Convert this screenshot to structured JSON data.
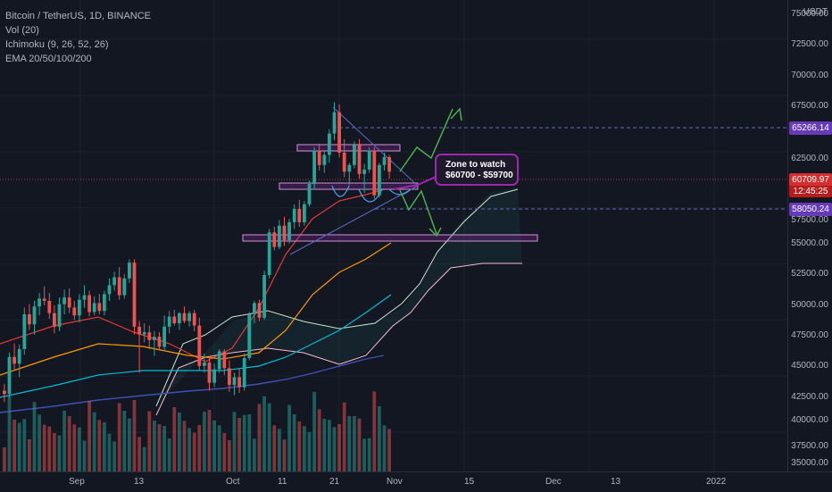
{
  "legend": {
    "symbol": "Bitcoin / TetherUS, 1D, BINANCE",
    "volume": "Vol (20)",
    "ichimoku": "Ichimoku (9, 26, 52, 26)",
    "ema": "EMA 20/50/100/200"
  },
  "price_axis": {
    "currency": "USDT",
    "ticks": [
      "75000.00",
      "72500.00",
      "70000.00",
      "67500.00",
      "62500.00",
      "57500.00",
      "55000.00",
      "52500.00",
      "50000.00",
      "47500.00",
      "45000.00",
      "42500.00",
      "40000.00",
      "37500.00",
      "35000.00"
    ]
  },
  "price_tags": {
    "upper": "65266.14",
    "current": "60709.97",
    "countdown": "12:45:25",
    "lower": "58050.24"
  },
  "time_axis": {
    "labels": [
      "Sep",
      "13",
      "Oct",
      "11",
      "21",
      "Nov",
      "15",
      "Dec",
      "13",
      "2022"
    ]
  },
  "annotation": {
    "line1": "Zone to watch",
    "line2": "$60700 - $59700"
  },
  "colors": {
    "background": "#131722",
    "up": "#26a69a",
    "down": "#ef5350",
    "upper_tag": "#673ab7",
    "current_tag": "#d32f2f",
    "annotation": "#9c27b0",
    "arrow": "#4caf50"
  },
  "chart_data": {
    "type": "candlestick",
    "price_range": [
      34000,
      76000
    ],
    "candles": [
      {
        "o": 41200,
        "h": 41800,
        "l": 40200,
        "c": 40900
      },
      {
        "o": 40900,
        "h": 44600,
        "l": 40600,
        "c": 44200
      },
      {
        "o": 44200,
        "h": 45400,
        "l": 43100,
        "c": 43600
      },
      {
        "o": 43600,
        "h": 45300,
        "l": 42400,
        "c": 44900
      },
      {
        "o": 44900,
        "h": 48600,
        "l": 44400,
        "c": 48000
      },
      {
        "o": 48000,
        "h": 48900,
        "l": 46600,
        "c": 47100
      },
      {
        "o": 47100,
        "h": 49200,
        "l": 46200,
        "c": 48700
      },
      {
        "o": 48700,
        "h": 49900,
        "l": 47900,
        "c": 49400
      },
      {
        "o": 49400,
        "h": 50500,
        "l": 48800,
        "c": 49200
      },
      {
        "o": 49200,
        "h": 49900,
        "l": 47600,
        "c": 48100
      },
      {
        "o": 48100,
        "h": 48800,
        "l": 46300,
        "c": 46900
      },
      {
        "o": 46900,
        "h": 49500,
        "l": 46500,
        "c": 48900
      },
      {
        "o": 48900,
        "h": 50200,
        "l": 48000,
        "c": 49500
      },
      {
        "o": 49500,
        "h": 50300,
        "l": 48100,
        "c": 48600
      },
      {
        "o": 48600,
        "h": 49200,
        "l": 47500,
        "c": 47900
      },
      {
        "o": 47900,
        "h": 49800,
        "l": 47300,
        "c": 49300
      },
      {
        "o": 49300,
        "h": 50600,
        "l": 48600,
        "c": 49700
      },
      {
        "o": 49700,
        "h": 50100,
        "l": 47800,
        "c": 48200
      },
      {
        "o": 48200,
        "h": 49600,
        "l": 47900,
        "c": 49000
      },
      {
        "o": 49000,
        "h": 49800,
        "l": 48000,
        "c": 48300
      },
      {
        "o": 48300,
        "h": 50100,
        "l": 47900,
        "c": 49800
      },
      {
        "o": 49800,
        "h": 51200,
        "l": 49200,
        "c": 50600
      },
      {
        "o": 50600,
        "h": 51800,
        "l": 50100,
        "c": 51300
      },
      {
        "o": 51300,
        "h": 52200,
        "l": 49300,
        "c": 49700
      },
      {
        "o": 49700,
        "h": 51600,
        "l": 49400,
        "c": 51200
      },
      {
        "o": 51200,
        "h": 52900,
        "l": 50800,
        "c": 52600
      },
      {
        "o": 52600,
        "h": 52900,
        "l": 46200,
        "c": 46900
      },
      {
        "o": 46900,
        "h": 47400,
        "l": 42800,
        "c": 46200
      },
      {
        "o": 46200,
        "h": 47200,
        "l": 45500,
        "c": 46400
      },
      {
        "o": 46400,
        "h": 47000,
        "l": 44900,
        "c": 45700
      },
      {
        "o": 45700,
        "h": 46500,
        "l": 44300,
        "c": 46000
      },
      {
        "o": 46000,
        "h": 46400,
        "l": 44800,
        "c": 45100
      },
      {
        "o": 45100,
        "h": 47900,
        "l": 44700,
        "c": 46900
      },
      {
        "o": 46900,
        "h": 48300,
        "l": 46300,
        "c": 47800
      },
      {
        "o": 47800,
        "h": 48400,
        "l": 47000,
        "c": 47200
      },
      {
        "o": 47200,
        "h": 48200,
        "l": 46600,
        "c": 48100
      },
      {
        "o": 48100,
        "h": 48700,
        "l": 47200,
        "c": 47400
      },
      {
        "o": 47400,
        "h": 48300,
        "l": 46900,
        "c": 48100
      },
      {
        "o": 48100,
        "h": 48400,
        "l": 46500,
        "c": 47000
      },
      {
        "o": 47000,
        "h": 47700,
        "l": 43000,
        "c": 43400
      },
      {
        "o": 43400,
        "h": 44500,
        "l": 42800,
        "c": 43700
      },
      {
        "o": 43700,
        "h": 44300,
        "l": 41200,
        "c": 41900
      },
      {
        "o": 41900,
        "h": 43600,
        "l": 41500,
        "c": 43100
      },
      {
        "o": 43100,
        "h": 44900,
        "l": 42800,
        "c": 44700
      },
      {
        "o": 44700,
        "h": 44900,
        "l": 42600,
        "c": 43200
      },
      {
        "o": 43200,
        "h": 43900,
        "l": 41100,
        "c": 41700
      },
      {
        "o": 41700,
        "h": 42800,
        "l": 40800,
        "c": 42400
      },
      {
        "o": 42400,
        "h": 43200,
        "l": 41000,
        "c": 41500
      },
      {
        "o": 41500,
        "h": 44500,
        "l": 41200,
        "c": 44100
      },
      {
        "o": 44100,
        "h": 48200,
        "l": 43900,
        "c": 48000
      },
      {
        "o": 48000,
        "h": 49200,
        "l": 47200,
        "c": 49000
      },
      {
        "o": 49000,
        "h": 49300,
        "l": 47400,
        "c": 47700
      },
      {
        "o": 47700,
        "h": 51900,
        "l": 47500,
        "c": 51500
      },
      {
        "o": 51500,
        "h": 55600,
        "l": 51200,
        "c": 55300
      },
      {
        "o": 55300,
        "h": 55800,
        "l": 53700,
        "c": 54000
      },
      {
        "o": 54000,
        "h": 56400,
        "l": 53800,
        "c": 55900
      },
      {
        "o": 55900,
        "h": 56700,
        "l": 54100,
        "c": 54600
      },
      {
        "o": 54600,
        "h": 56500,
        "l": 54300,
        "c": 56200
      },
      {
        "o": 56200,
        "h": 57800,
        "l": 55600,
        "c": 57400
      },
      {
        "o": 57400,
        "h": 58200,
        "l": 55800,
        "c": 56200
      },
      {
        "o": 56200,
        "h": 58100,
        "l": 55900,
        "c": 57800
      },
      {
        "o": 57800,
        "h": 59900,
        "l": 57600,
        "c": 59600
      },
      {
        "o": 59600,
        "h": 62900,
        "l": 59100,
        "c": 62600
      },
      {
        "o": 62600,
        "h": 63200,
        "l": 60800,
        "c": 61300
      },
      {
        "o": 61300,
        "h": 62600,
        "l": 60600,
        "c": 62200
      },
      {
        "o": 62200,
        "h": 64500,
        "l": 61500,
        "c": 64100
      },
      {
        "o": 64100,
        "h": 66900,
        "l": 63500,
        "c": 66000
      },
      {
        "o": 66000,
        "h": 66700,
        "l": 62000,
        "c": 62400
      },
      {
        "o": 62400,
        "h": 63600,
        "l": 60200,
        "c": 60700
      },
      {
        "o": 60700,
        "h": 61500,
        "l": 59500,
        "c": 61300
      },
      {
        "o": 61300,
        "h": 63400,
        "l": 61000,
        "c": 63100
      },
      {
        "o": 63100,
        "h": 63600,
        "l": 60100,
        "c": 60500
      },
      {
        "o": 60500,
        "h": 61400,
        "l": 58800,
        "c": 60900
      },
      {
        "o": 60900,
        "h": 62900,
        "l": 60600,
        "c": 62600
      },
      {
        "o": 62600,
        "h": 62900,
        "l": 58300,
        "c": 58600
      },
      {
        "o": 58600,
        "h": 61500,
        "l": 58400,
        "c": 61300
      },
      {
        "o": 61300,
        "h": 62400,
        "l": 60800,
        "c": 62000
      },
      {
        "o": 62000,
        "h": 62200,
        "l": 60100,
        "c": 60700
      }
    ]
  }
}
